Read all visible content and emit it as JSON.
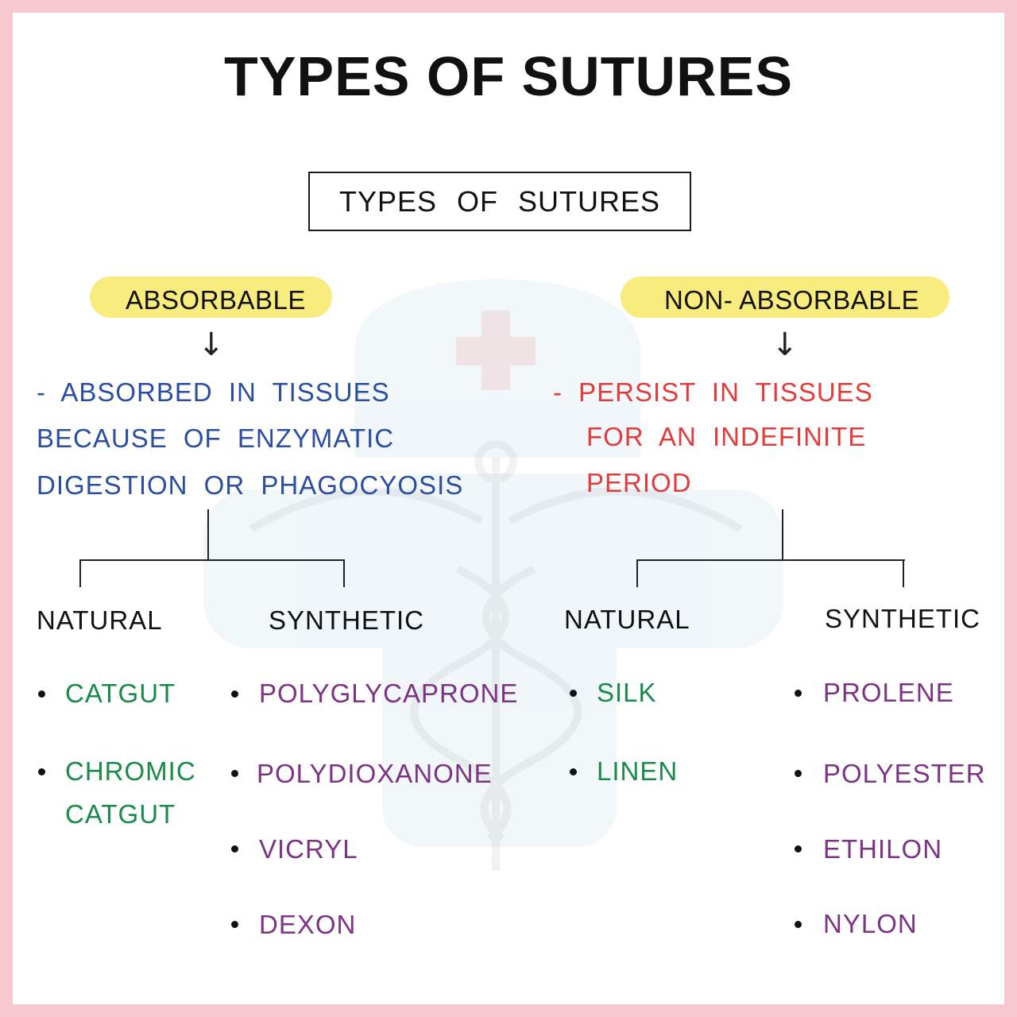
{
  "title": "TYPES OF SUTURES",
  "root": "TYPES OF SUTURES",
  "left": {
    "category": "ABSORBABLE",
    "desc": [
      "- ABSORBED IN TISSUES",
      "BECAUSE OF ENZYMATIC",
      "DIGESTION OR PHAGOCYOSIS"
    ],
    "natural": {
      "header": "NATURAL",
      "items": [
        "CATGUT",
        "CHROMIC",
        "CATGUT"
      ]
    },
    "synthetic": {
      "header": "SYNTHETIC",
      "items": [
        "POLYGLYCAPRONE",
        "POLYDIOXANONE",
        "VICRYL",
        "DEXON"
      ]
    }
  },
  "right": {
    "category": "NON- ABSORBABLE",
    "desc": [
      "- PERSIST IN TISSUES",
      "FOR AN INDEFINITE",
      "PERIOD"
    ],
    "natural": {
      "header": "NATURAL",
      "items": [
        "SILK",
        "LINEN"
      ]
    },
    "synthetic": {
      "header": "SYNTHETIC",
      "items": [
        "PROLENE",
        "POLYESTER",
        "ETHILON",
        "NYLON"
      ]
    }
  },
  "colors": {
    "border": "#f7c9cf",
    "highlight": "#f8ec7e",
    "absorbable_desc": "#2a4fa1",
    "non_absorbable_desc": "#e23b3b",
    "natural_items": "#1a8a4a",
    "synthetic_items": "#7c3384"
  },
  "icons": [
    "caduceus-watermark-icon",
    "medical-cross-icon",
    "down-arrow-icon"
  ]
}
